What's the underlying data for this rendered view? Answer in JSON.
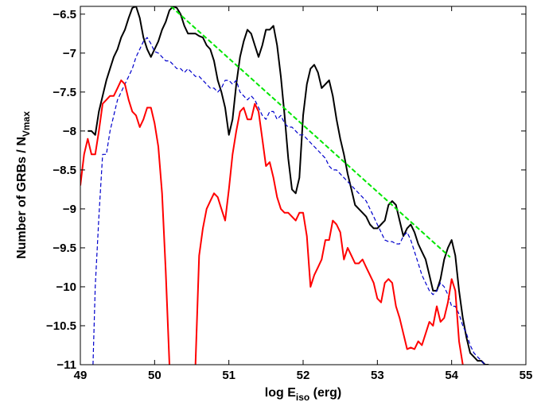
{
  "chart_data": {
    "type": "line",
    "title": "",
    "xlabel": {
      "main": "log E",
      "sub": "iso",
      "suffix": " (erg)"
    },
    "ylabel": {
      "main": "Number of GRBs / N",
      "sub": "Vmax"
    },
    "xlim": [
      49,
      55
    ],
    "ylim": [
      -11,
      -6.4
    ],
    "x_ticks": [
      49,
      50,
      51,
      52,
      53,
      54,
      55
    ],
    "y_ticks": [
      -6.5,
      -7,
      -7.5,
      -8,
      -8.5,
      -9,
      -9.5,
      -10,
      -10.5,
      -11
    ],
    "grid": false,
    "legend": "none",
    "series": [
      {
        "color": "#000000",
        "style": "solid",
        "x": [
          49.1,
          49.15,
          49.2,
          49.25,
          49.3,
          49.35,
          49.4,
          49.45,
          49.5,
          49.55,
          49.6,
          49.65,
          49.7,
          49.75,
          49.8,
          49.85,
          49.9,
          49.95,
          50.0,
          50.05,
          50.1,
          50.15,
          50.2,
          50.25,
          50.3,
          50.35,
          50.4,
          50.45,
          50.5,
          50.55,
          50.6,
          50.65,
          50.7,
          50.75,
          50.8,
          50.85,
          50.9,
          50.95,
          51.0,
          51.05,
          51.1,
          51.15,
          51.2,
          51.25,
          51.3,
          51.35,
          51.4,
          51.45,
          51.5,
          51.55,
          51.6,
          51.65,
          51.7,
          51.75,
          51.8,
          51.85,
          51.9,
          51.95,
          52.0,
          52.05,
          52.1,
          52.15,
          52.2,
          52.25,
          52.3,
          52.35,
          52.4,
          52.45,
          52.5,
          52.55,
          52.6,
          52.65,
          52.7,
          52.75,
          52.8,
          52.85,
          52.9,
          52.95,
          53.0,
          53.05,
          53.1,
          53.15,
          53.2,
          53.25,
          53.3,
          53.35,
          53.4,
          53.45,
          53.5,
          53.55,
          53.6,
          53.65,
          53.7,
          53.75,
          53.8,
          53.85,
          53.9,
          53.95,
          54.0,
          54.05,
          54.1,
          54.15,
          54.2,
          54.25,
          54.3,
          54.35,
          54.4,
          54.45,
          54.5
        ],
        "values": [
          -8.0,
          -8.0,
          -8.05,
          -7.75,
          -7.55,
          -7.35,
          -7.2,
          -7.05,
          -6.95,
          -6.8,
          -6.7,
          -6.55,
          -6.42,
          -6.4,
          -6.55,
          -6.8,
          -6.95,
          -7.05,
          -6.95,
          -6.85,
          -6.7,
          -6.6,
          -6.45,
          -6.4,
          -6.42,
          -6.5,
          -6.65,
          -6.75,
          -6.75,
          -6.75,
          -6.78,
          -6.8,
          -6.9,
          -6.95,
          -7.1,
          -7.35,
          -7.5,
          -7.7,
          -8.05,
          -7.85,
          -7.4,
          -7.05,
          -6.85,
          -6.7,
          -6.75,
          -6.9,
          -7.05,
          -6.9,
          -6.7,
          -6.7,
          -6.65,
          -6.9,
          -7.3,
          -7.8,
          -8.35,
          -8.75,
          -8.8,
          -8.6,
          -7.8,
          -7.4,
          -7.2,
          -7.15,
          -7.25,
          -7.45,
          -7.4,
          -7.35,
          -7.55,
          -7.85,
          -8.1,
          -8.3,
          -8.55,
          -8.75,
          -8.95,
          -9.0,
          -9.05,
          -9.1,
          -9.2,
          -9.25,
          -9.25,
          -9.2,
          -9.15,
          -8.95,
          -8.9,
          -8.95,
          -9.15,
          -9.35,
          -9.25,
          -9.2,
          -9.3,
          -9.45,
          -9.55,
          -9.65,
          -9.85,
          -10.05,
          -10.05,
          -9.9,
          -9.65,
          -9.5,
          -9.4,
          -9.6,
          -10.05,
          -10.4,
          -10.65,
          -10.85,
          -10.9,
          -10.95,
          -10.95,
          -11.0,
          -11.0
        ]
      },
      {
        "color": "#0000cc",
        "style": "dashed",
        "x": [
          49.17,
          49.2,
          49.25,
          49.3,
          49.35,
          49.4,
          49.45,
          49.5,
          49.55,
          49.6,
          49.65,
          49.7,
          49.75,
          49.8,
          49.85,
          49.9,
          49.95,
          50.0,
          50.05,
          50.1,
          50.15,
          50.2,
          50.25,
          50.3,
          50.35,
          50.4,
          50.45,
          50.5,
          50.55,
          50.6,
          50.65,
          50.7,
          50.75,
          50.8,
          50.85,
          50.9,
          50.95,
          51.0,
          51.05,
          51.1,
          51.15,
          51.2,
          51.25,
          51.3,
          51.35,
          51.4,
          51.45,
          51.5,
          51.55,
          51.6,
          51.65,
          51.7,
          51.75,
          51.8,
          51.85,
          51.9,
          51.95,
          52.0,
          52.05,
          52.1,
          52.15,
          52.2,
          52.25,
          52.3,
          52.35,
          52.4,
          52.45,
          52.5,
          52.55,
          52.6,
          52.65,
          52.7,
          52.75,
          52.8,
          52.85,
          52.9,
          52.95,
          53.0,
          53.05,
          53.1,
          53.15,
          53.2,
          53.25,
          53.3,
          53.35,
          53.4,
          53.45,
          53.5,
          53.55,
          53.6,
          53.65,
          53.7,
          53.75,
          53.8,
          53.85,
          53.9,
          53.95,
          54.0,
          54.05,
          54.1,
          54.15,
          54.2,
          54.25,
          54.3,
          54.35,
          54.4,
          54.45
        ],
        "values": [
          -11.0,
          -10.0,
          -9.1,
          -8.3,
          -8.3,
          -8.0,
          -7.8,
          -7.6,
          -7.5,
          -7.4,
          -7.3,
          -7.2,
          -7.05,
          -6.95,
          -6.85,
          -6.8,
          -6.88,
          -6.98,
          -7.0,
          -7.05,
          -7.1,
          -7.1,
          -7.15,
          -7.2,
          -7.2,
          -7.25,
          -7.2,
          -7.25,
          -7.3,
          -7.3,
          -7.35,
          -7.4,
          -7.45,
          -7.45,
          -7.5,
          -7.45,
          -7.35,
          -7.35,
          -7.4,
          -7.35,
          -7.5,
          -7.55,
          -7.6,
          -7.55,
          -7.6,
          -7.7,
          -7.8,
          -7.85,
          -7.75,
          -7.75,
          -7.85,
          -7.8,
          -7.9,
          -7.95,
          -7.95,
          -8.0,
          -8.05,
          -8.05,
          -8.1,
          -8.15,
          -8.2,
          -8.25,
          -8.3,
          -8.35,
          -8.45,
          -8.5,
          -8.5,
          -8.55,
          -8.6,
          -8.65,
          -8.7,
          -8.75,
          -8.8,
          -8.85,
          -8.9,
          -9.0,
          -9.1,
          -9.2,
          -9.3,
          -9.4,
          -9.42,
          -9.42,
          -9.45,
          -9.45,
          -9.35,
          -9.3,
          -9.4,
          -9.55,
          -9.7,
          -9.85,
          -9.95,
          -10.05,
          -10.1,
          -10.05,
          -9.95,
          -10.0,
          -10.1,
          -10.25,
          -10.25,
          -10.35,
          -10.5,
          -10.6,
          -10.75,
          -10.85,
          -10.9,
          -10.95,
          -11.0
        ]
      },
      {
        "color": "#ff0000",
        "style": "solid",
        "x": [
          49.0,
          49.05,
          49.1,
          49.15,
          49.2,
          49.25,
          49.3,
          49.35,
          49.4,
          49.45,
          49.5,
          49.55,
          49.6,
          49.65,
          49.7,
          49.75,
          49.8,
          49.85,
          49.9,
          49.95,
          50.0,
          50.05,
          50.1,
          50.15,
          50.2,
          null,
          50.55,
          50.6,
          50.65,
          50.7,
          50.75,
          50.8,
          50.85,
          50.9,
          50.95,
          51.0,
          51.05,
          51.1,
          51.15,
          51.2,
          51.25,
          51.3,
          51.35,
          51.4,
          51.45,
          51.5,
          51.55,
          51.6,
          51.65,
          51.7,
          51.75,
          51.8,
          51.85,
          51.9,
          51.95,
          52.0,
          52.05,
          52.1,
          52.15,
          52.2,
          52.25,
          52.3,
          52.35,
          52.4,
          52.45,
          52.5,
          52.55,
          52.6,
          52.65,
          52.7,
          52.75,
          52.8,
          52.85,
          52.9,
          52.95,
          53.0,
          53.05,
          53.1,
          53.15,
          53.2,
          53.25,
          53.3,
          53.35,
          53.4,
          53.45,
          53.5,
          53.55,
          53.6,
          53.65,
          53.7,
          53.75,
          53.8,
          53.85,
          53.9,
          53.95,
          54.0,
          54.05,
          54.1,
          54.15
        ],
        "values": [
          -8.7,
          -8.3,
          -8.1,
          -8.3,
          -8.3,
          -8.0,
          -7.65,
          -7.6,
          -7.55,
          -7.55,
          -7.45,
          -7.35,
          -7.4,
          -7.6,
          -7.75,
          -7.8,
          -7.95,
          -7.85,
          -7.7,
          -7.7,
          -7.9,
          -8.2,
          -8.8,
          -9.8,
          -11.0,
          null,
          -11.0,
          -9.6,
          -9.25,
          -9.0,
          -8.9,
          -8.8,
          -8.85,
          -9.0,
          -9.15,
          -8.75,
          -8.3,
          -8.0,
          -7.75,
          -7.7,
          -7.85,
          -7.85,
          -7.65,
          -7.75,
          -8.1,
          -8.45,
          -8.4,
          -8.6,
          -8.85,
          -9.0,
          -9.05,
          -9.05,
          -9.1,
          -9.15,
          -9.05,
          -9.05,
          -9.35,
          -10.0,
          -9.85,
          -9.75,
          -9.65,
          -9.4,
          -9.4,
          -9.15,
          -9.2,
          -9.3,
          -9.65,
          -9.5,
          -9.6,
          -9.7,
          -9.7,
          -9.65,
          -9.75,
          -9.85,
          -9.95,
          -10.15,
          -10.2,
          -9.95,
          -9.9,
          -9.95,
          -10.25,
          -10.4,
          -10.6,
          -10.8,
          -10.78,
          -10.8,
          -10.7,
          -10.75,
          -10.6,
          -10.45,
          -10.5,
          -10.25,
          -10.45,
          -10.4,
          -10.2,
          -9.9,
          -10.05,
          -10.7,
          -11.0
        ]
      },
      {
        "color": "#00e600",
        "style": "dashed",
        "x": [
          50.22,
          53.98
        ],
        "values": [
          -6.4,
          -9.62
        ]
      }
    ]
  }
}
